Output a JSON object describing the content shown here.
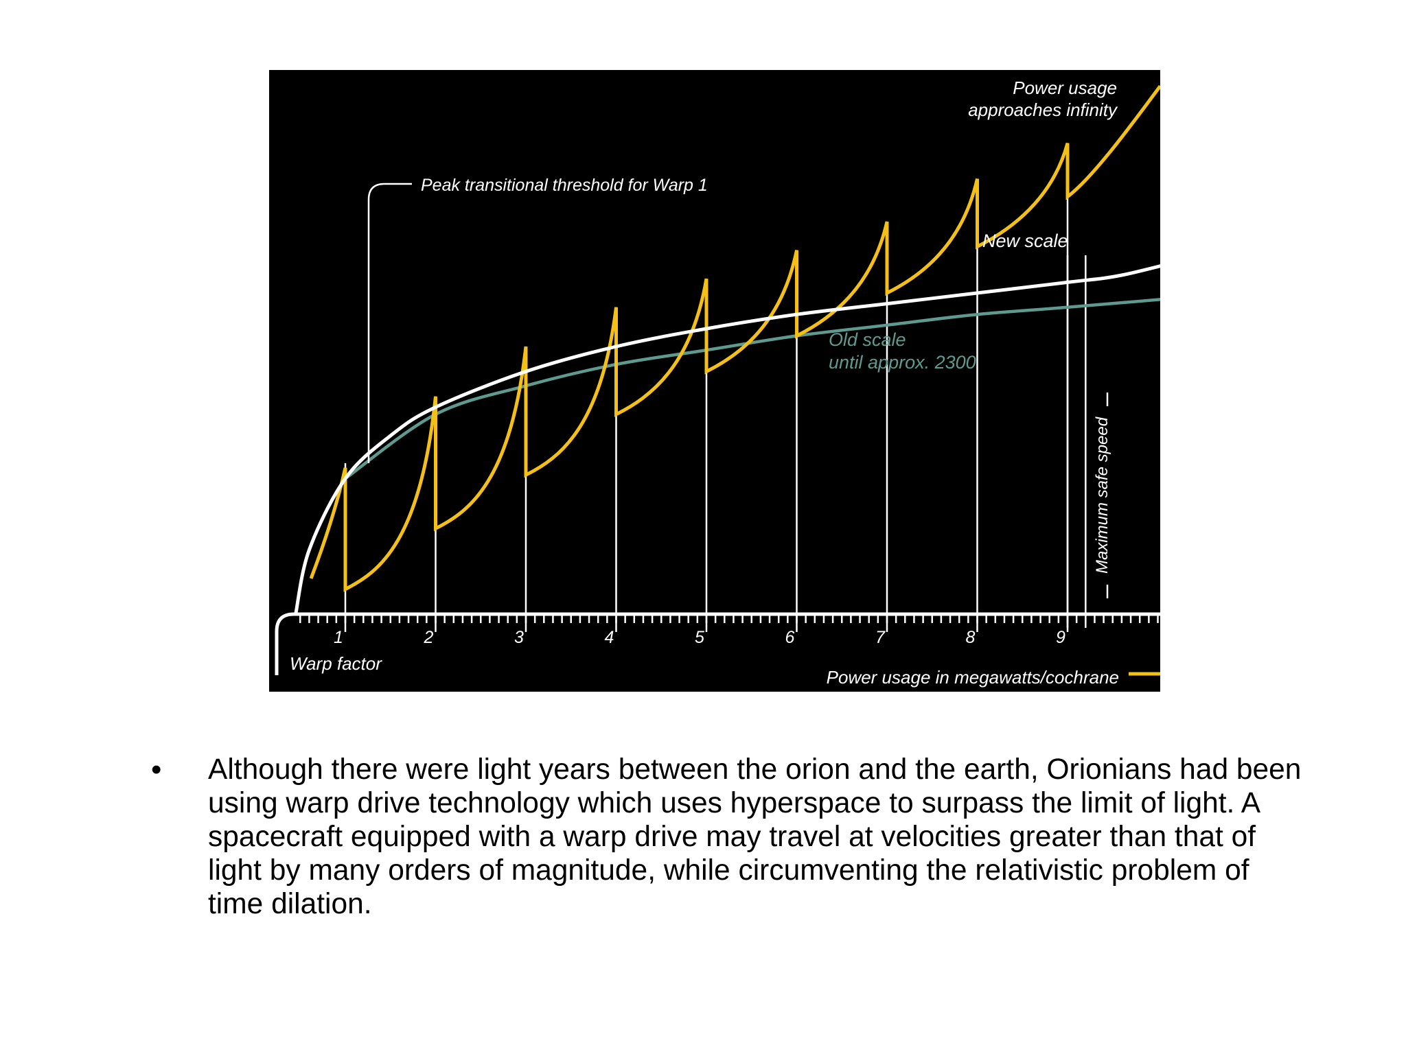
{
  "chart_data": {
    "type": "line",
    "title": "",
    "xlabel": "Warp factor",
    "ylabel": "",
    "x_ticks": [
      1,
      2,
      3,
      4,
      5,
      6,
      7,
      8,
      9
    ],
    "x_tick_labels": [
      "1",
      "2",
      "3",
      "4",
      "5",
      "6",
      "7",
      "8",
      "9"
    ],
    "legend": [
      {
        "name": "Power usage in megawatts/cochrane",
        "color": "#f4c016",
        "position": "bottom-right"
      }
    ],
    "annotations": {
      "peak_threshold": "Peak transitional threshold for Warp 1",
      "power_usage_line1": "Power usage",
      "power_usage_line2": "approaches infinity",
      "new_scale": "New scale",
      "old_scale_line1": "Old scale",
      "old_scale_line2": "until approx. 2300",
      "max_safe_speed": "Maximum safe speed"
    },
    "series": [
      {
        "name": "New scale",
        "color": "#ffffff",
        "x": [
          0.45,
          0.6,
          1,
          1.5,
          2,
          3,
          4,
          5,
          6,
          7,
          8,
          9,
          9.6,
          10.4
        ],
        "y": [
          0,
          0.18,
          0.38,
          0.5,
          0.58,
          0.68,
          0.75,
          0.8,
          0.84,
          0.87,
          0.9,
          0.93,
          0.95,
          1
        ]
      },
      {
        "name": "Old scale until approx. 2300",
        "color": "#5e9a8f",
        "x": [
          1,
          2,
          3,
          4,
          5,
          6,
          7,
          8,
          9,
          10.4
        ],
        "y": [
          0.38,
          0.56,
          0.64,
          0.7,
          0.74,
          0.78,
          0.81,
          0.84,
          0.86,
          0.89
        ]
      },
      {
        "name": "Power usage in megawatts/cochrane",
        "color": "#f4c016",
        "peaks_x": [
          1,
          2,
          3,
          4,
          5,
          6,
          7,
          8,
          9
        ],
        "peaks_y": [
          0.41,
          0.61,
          0.75,
          0.86,
          0.94,
          1.02,
          1.1,
          1.22,
          1.32
        ],
        "troughs_y": [
          0.07,
          0.24,
          0.39,
          0.56,
          0.68,
          0.78,
          0.9,
          1.03,
          1.17
        ],
        "end_y": 1.48
      }
    ],
    "max_safe_speed_x": [
      9.0,
      9.2
    ]
  },
  "bullet": {
    "marker": "•",
    "text": "Although there were light years between the orion and the earth, Orionians had been using warp drive technology which uses hyperspace to surpass the limit of light. A spacecraft equipped with a warp drive may travel at velocities greater than that of light by many orders of magnitude, while circumventing the relativistic problem of time dilation."
  }
}
